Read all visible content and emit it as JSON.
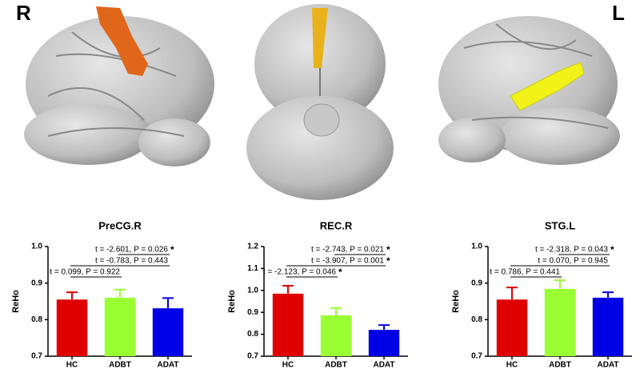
{
  "side_labels": {
    "left": "R",
    "right": "L"
  },
  "chart_data": [
    {
      "type": "bar",
      "title": "PreCG.R",
      "ylabel": "ReHo",
      "categories": [
        "HC",
        "ADBT",
        "ADAT"
      ],
      "values": [
        0.855,
        0.86,
        0.831
      ],
      "errors": [
        0.02,
        0.022,
        0.028
      ],
      "colors": [
        "#e00000",
        "#99ff33",
        "#0000e6"
      ],
      "ylim": [
        0.7,
        1.0
      ],
      "yticks": [
        0.7,
        0.8,
        0.9,
        {
          "value": 1.0,
          "label": "1.0"
        }
      ],
      "annotations": [
        {
          "text": "t = -2.601, P = 0.026",
          "mark": "*"
        },
        {
          "text": "t = -0.783, P = 0.443"
        },
        {
          "text": "t = 0.099, P = 0.922"
        }
      ]
    },
    {
      "type": "bar",
      "title": "REC.R",
      "ylabel": "ReHo",
      "categories": [
        "HC",
        "ADBT",
        "ADAT"
      ],
      "values": [
        0.985,
        0.886,
        0.82
      ],
      "errors": [
        0.036,
        0.033,
        0.022
      ],
      "colors": [
        "#e00000",
        "#99ff33",
        "#0000e6"
      ],
      "ylim": [
        0.7,
        1.2
      ],
      "yticks": [
        0.7,
        0.8,
        0.9,
        {
          "value": 1.0,
          "label": "1.0"
        },
        1.1,
        1.2
      ],
      "annotations": [
        {
          "text": "t = -2.743, P = 0.021",
          "mark": "*"
        },
        {
          "text": "t = -3.907, P = 0.001",
          "mark": "*"
        },
        {
          "text": "t = -2.123, P = 0.046",
          "mark": "*"
        }
      ]
    },
    {
      "type": "bar",
      "title": "STG.L",
      "ylabel": "ReHo",
      "categories": [
        "HC",
        "ADBT",
        "ADAT"
      ],
      "values": [
        0.855,
        0.884,
        0.86
      ],
      "errors": [
        0.033,
        0.024,
        0.015
      ],
      "colors": [
        "#e00000",
        "#99ff33",
        "#0000e6"
      ],
      "ylim": [
        0.7,
        1.0
      ],
      "yticks": [
        0.7,
        0.8,
        0.9,
        {
          "value": 1.0,
          "label": "1.0"
        }
      ],
      "annotations": [
        {
          "text": "t = -2.318, P = 0.043",
          "mark": "*"
        },
        {
          "text": "t = 0.070, P = 0.945"
        },
        {
          "text": "t = 0.786, P = 0.441"
        }
      ]
    }
  ]
}
